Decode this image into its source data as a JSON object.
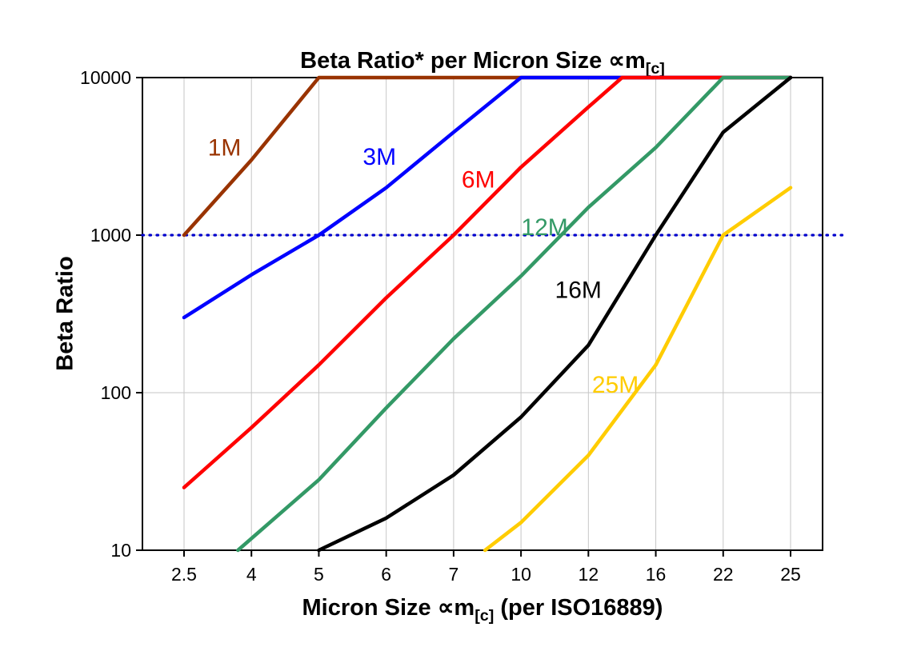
{
  "chart_data": {
    "type": "line",
    "title": {
      "text": "Beta Ratio* per Micron Size ∝m",
      "sub": "[c]"
    },
    "xlabel": {
      "pre": "Micron Size ∝m",
      "sub": "[c]",
      "post": " (per ISO16889)"
    },
    "ylabel": "Beta Ratio",
    "x_scale": "categorical",
    "y_scale": "log",
    "categories": [
      2.5,
      4,
      5,
      6,
      7,
      10,
      12,
      16,
      22,
      25
    ],
    "y_ticks": [
      10,
      100,
      1000,
      10000
    ],
    "ylim": [
      10,
      10000
    ],
    "grid": true,
    "legend": "inline-labels",
    "grid_color": "#c6c6c6",
    "axis_color": "#000000",
    "reference_line": {
      "y": 1000,
      "color": "#0000CC",
      "style": "dotted"
    },
    "series": [
      {
        "name": "1M",
        "color": "#993300",
        "points": [
          [
            2.5,
            1000
          ],
          [
            4,
            3000
          ],
          [
            5,
            10000
          ],
          [
            25,
            10000
          ]
        ],
        "label": {
          "text": "1M",
          "x": 3.4,
          "y": 3200
        }
      },
      {
        "name": "3M",
        "color": "#0000FF",
        "points": [
          [
            2.5,
            300
          ],
          [
            4,
            560
          ],
          [
            5,
            1000
          ],
          [
            6,
            2000
          ],
          [
            7,
            4500
          ],
          [
            10,
            10000
          ],
          [
            25,
            10000
          ]
        ],
        "label": {
          "text": "3M",
          "x": 5.9,
          "y": 2800
        }
      },
      {
        "name": "6M",
        "color": "#FF0000",
        "points": [
          [
            2.5,
            25
          ],
          [
            4,
            60
          ],
          [
            5,
            150
          ],
          [
            6,
            400
          ],
          [
            7,
            1000
          ],
          [
            10,
            2700
          ],
          [
            12,
            6500
          ],
          [
            14,
            10000
          ],
          [
            25,
            10000
          ]
        ],
        "label": {
          "text": "6M",
          "x": 8.1,
          "y": 2000
        }
      },
      {
        "name": "12M",
        "color": "#339966",
        "points": [
          [
            3.7,
            10
          ],
          [
            5,
            28
          ],
          [
            6,
            80
          ],
          [
            7,
            220
          ],
          [
            10,
            550
          ],
          [
            12,
            1500
          ],
          [
            16,
            3600
          ],
          [
            22,
            10000
          ],
          [
            25,
            10000
          ]
        ],
        "label": {
          "text": "12M",
          "x": 10.7,
          "y": 1000
        }
      },
      {
        "name": "16M",
        "color": "#000000",
        "points": [
          [
            5,
            10
          ],
          [
            6,
            16
          ],
          [
            7,
            30
          ],
          [
            10,
            70
          ],
          [
            12,
            200
          ],
          [
            16,
            1000
          ],
          [
            22,
            4500
          ],
          [
            25,
            10000
          ]
        ],
        "label": {
          "text": "16M",
          "x": 11.7,
          "y": 400
        }
      },
      {
        "name": "25M",
        "color": "#FFCC00",
        "points": [
          [
            8.4,
            10
          ],
          [
            10,
            15
          ],
          [
            12,
            40
          ],
          [
            16,
            150
          ],
          [
            22,
            1000
          ],
          [
            25,
            2000
          ]
        ],
        "label": {
          "text": "25M",
          "x": 13.6,
          "y": 100
        }
      }
    ]
  }
}
